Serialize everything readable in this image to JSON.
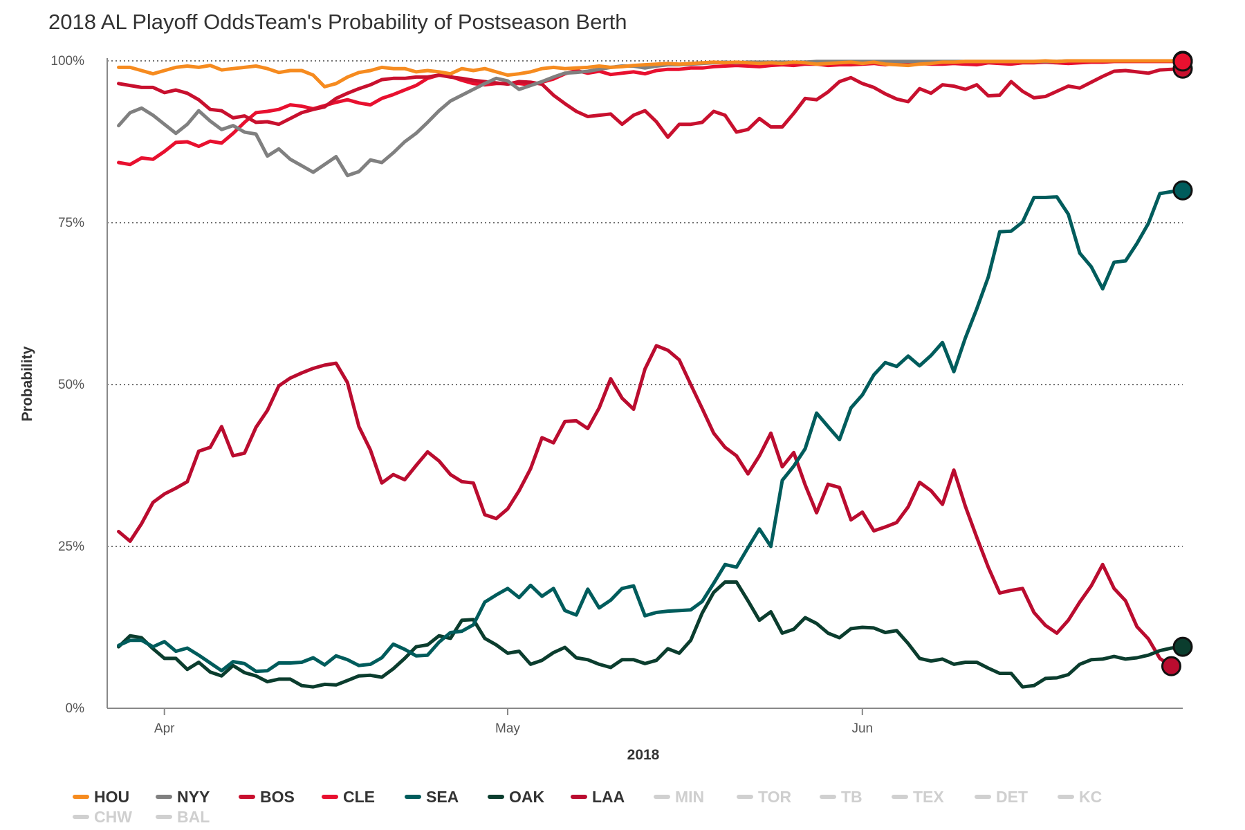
{
  "chart_data": {
    "type": "line",
    "title": "2018 AL Playoff OddsTeam's Probability of Postseason Berth",
    "xlabel": "2018",
    "ylabel": "Probability",
    "ylim": [
      0,
      100
    ],
    "y_ticks": [
      "0%",
      "25%",
      "50%",
      "75%",
      "100%"
    ],
    "x_ticks": [
      {
        "label": "Apr",
        "day": 4
      },
      {
        "label": "May",
        "day": 34
      },
      {
        "label": "Jun",
        "day": 65
      }
    ],
    "xlim": [
      -1,
      93
    ],
    "grid": "horizontal dotted",
    "legend_position": "bottom",
    "series": [
      {
        "name": "HOU",
        "color": "#f68b1f",
        "active": true,
        "values": [
          99,
          99,
          98.5,
          98,
          98.5,
          99,
          99.2,
          99,
          99.3,
          98.6,
          98.8,
          99,
          99.2,
          98.8,
          98.2,
          98.5,
          98.5,
          97.8,
          96,
          96.5,
          97.5,
          98.2,
          98.5,
          99,
          98.8,
          98.8,
          98.3,
          98.5,
          98.3,
          98,
          98.8,
          98.5,
          98.8,
          98.3,
          97.8,
          98,
          98.3,
          98.8,
          99,
          98.8,
          98.9,
          99,
          99.2,
          99,
          99.1,
          99.3,
          99.4,
          99.5,
          99.6,
          99.5,
          99.6,
          99.7,
          99.8,
          99.7,
          99.8,
          99.7,
          99.6,
          99.7,
          99.6,
          99.8,
          99.7,
          99.5,
          99.6,
          99.7,
          99.8,
          99.6,
          99.8,
          99.5,
          99.4,
          99.3,
          99.5,
          99.6,
          99.8,
          99.8,
          99.9,
          99.9,
          99.9,
          99.9,
          99.9,
          99.9,
          99.9,
          100,
          99.9,
          100,
          100,
          100,
          100,
          100,
          100,
          100,
          100,
          100,
          100,
          100
        ]
      },
      {
        "name": "NYY",
        "color": "#808080",
        "active": true,
        "values": [
          90,
          92,
          92.7,
          91.6,
          90.2,
          88.8,
          90.2,
          92.3,
          90.7,
          89.4,
          90,
          89,
          88.7,
          85.3,
          86.4,
          84.8,
          83.8,
          82.8,
          84,
          85.2,
          82.3,
          82.9,
          84.7,
          84.3,
          85.8,
          87.5,
          88.8,
          90.5,
          92.3,
          93.8,
          94.7,
          95.6,
          96.5,
          97.3,
          96.9,
          95.6,
          96.2,
          96.8,
          97.5,
          98.1,
          98.2,
          98.4,
          98.7,
          99,
          99.2,
          99.2,
          98.9,
          99.2,
          99.4,
          99.4,
          99.5,
          99.6,
          99.7,
          99.8,
          99.7,
          99.8,
          99.8,
          99.8,
          99.8,
          99.8,
          99.8,
          99.9,
          99.9,
          99.9,
          99.9,
          99.9,
          99.9,
          99.9,
          99.9,
          99.9,
          99.9,
          99.9,
          99.9,
          99.9,
          99.9,
          99.9,
          99.9,
          99.9,
          99.9,
          99.9,
          99.9,
          99.9,
          99.9,
          100,
          100,
          100,
          100,
          100,
          100,
          100,
          100,
          100,
          100,
          100
        ]
      },
      {
        "name": "BOS",
        "color": "#c8102e",
        "active": true,
        "values": [
          96.5,
          96.2,
          95.9,
          95.9,
          95.1,
          95.5,
          95,
          94,
          92.5,
          92.3,
          91.2,
          91.5,
          90.5,
          90.6,
          90.2,
          91.1,
          92,
          92.5,
          92.9,
          94.2,
          95,
          95.7,
          96.3,
          97.1,
          97.3,
          97.3,
          97.5,
          97.5,
          97.8,
          97.5,
          97.3,
          97,
          96.8,
          96.6,
          96.4,
          96.8,
          96.7,
          96.4,
          94.7,
          93.4,
          92.2,
          91.4,
          91.6,
          91.8,
          90.2,
          91.6,
          92.3,
          90.6,
          88.2,
          90.2,
          90.2,
          90.5,
          92.2,
          91.6,
          89,
          89.4,
          91.1,
          89.8,
          89.8,
          91.9,
          94.2,
          94,
          95.2,
          96.8,
          97.4,
          96.5,
          95.9,
          94.9,
          94.1,
          93.7,
          95.7,
          95,
          96.3,
          96.1,
          95.6,
          96.3,
          94.6,
          94.7,
          96.8,
          95.3,
          94.3,
          94.5,
          95.3,
          96.1,
          95.8,
          96.7,
          97.6,
          98.4,
          98.5,
          98.3,
          98.1,
          98.6,
          98.7,
          98.8
        ]
      },
      {
        "name": "CLE",
        "color": "#e8102f",
        "active": true,
        "values": [
          84.3,
          84,
          85,
          84.8,
          86,
          87.4,
          87.5,
          86.8,
          87.6,
          87.3,
          88.8,
          90.5,
          92,
          92.2,
          92.5,
          93.2,
          93,
          92.6,
          93.1,
          93.6,
          94,
          93.5,
          93.2,
          94.2,
          94.8,
          95.5,
          96.2,
          97.3,
          97.8,
          97.6,
          97,
          96.5,
          96.3,
          96.5,
          96.5,
          96.5,
          96.3,
          96.7,
          97.2,
          98,
          98.5,
          98.1,
          98.4,
          97.9,
          98.1,
          98.3,
          98,
          98.5,
          98.7,
          98.7,
          98.9,
          98.9,
          99.1,
          99.2,
          99.3,
          99.2,
          99.1,
          99.3,
          99.4,
          99.3,
          99.5,
          99.5,
          99.3,
          99.4,
          99.4,
          99.5,
          99.6,
          99.4,
          99.6,
          99.7,
          99.6,
          99.5,
          99.5,
          99.6,
          99.5,
          99.4,
          99.7,
          99.6,
          99.5,
          99.7,
          99.7,
          99.8,
          99.7,
          99.6,
          99.7,
          99.8,
          99.8,
          99.9,
          99.9,
          99.9,
          99.9,
          99.9,
          99.9,
          99.9
        ]
      },
      {
        "name": "SEA",
        "color": "#005c5c",
        "active": true,
        "values": [
          9.7,
          10.5,
          10.5,
          9.5,
          10.3,
          8.8,
          9.3,
          8.2,
          7,
          5.8,
          7.2,
          6.9,
          5.7,
          5.8,
          7,
          7,
          7.1,
          7.8,
          6.7,
          8.1,
          7.5,
          6.6,
          6.8,
          7.8,
          9.9,
          9.1,
          8.1,
          8.2,
          10.2,
          11.7,
          11.9,
          12.9,
          16.4,
          17.5,
          18.5,
          17.1,
          19,
          17.3,
          18.5,
          15.1,
          14.4,
          18.4,
          15.5,
          16.7,
          18.5,
          18.9,
          14.3,
          14.8,
          15,
          15.1,
          15.2,
          16.5,
          19.3,
          22.2,
          21.8,
          24.8,
          27.7,
          25,
          35.2,
          37.4,
          40.1,
          45.6,
          43.5,
          41.5,
          46.4,
          48.4,
          51.5,
          53.4,
          52.8,
          54.4,
          52.9,
          54.5,
          56.5,
          52,
          57.2,
          61.7,
          66.6,
          73.6,
          73.7,
          75.1,
          78.9,
          78.9,
          79,
          76.3,
          70.3,
          68.2,
          64.8,
          68.9,
          69.1,
          71.8,
          74.9,
          79.5,
          79.8,
          80
        ]
      },
      {
        "name": "OAK",
        "color": "#0b3d2e",
        "active": true,
        "values": [
          9.5,
          11.2,
          10.9,
          9.2,
          7.7,
          7.7,
          6,
          7.1,
          5.6,
          5,
          6.6,
          5.5,
          5,
          4.1,
          4.5,
          4.5,
          3.5,
          3.3,
          3.7,
          3.6,
          4.3,
          5,
          5.1,
          4.8,
          6.1,
          7.7,
          9.5,
          9.8,
          11.2,
          10.8,
          13.6,
          13.7,
          10.8,
          9.8,
          8.5,
          8.8,
          6.8,
          7.4,
          8.6,
          9.4,
          7.8,
          7.5,
          6.8,
          6.3,
          7.5,
          7.5,
          6.9,
          7.4,
          9.2,
          8.5,
          10.5,
          14.7,
          17.9,
          19.5,
          19.5,
          16.6,
          13.6,
          14.9,
          11.6,
          12.2,
          14,
          13.1,
          11.6,
          10.9,
          12.3,
          12.5,
          12.4,
          11.7,
          12,
          10,
          7.7,
          7.3,
          7.6,
          6.8,
          7.1,
          7.1,
          6.2,
          5.4,
          5.4,
          3.3,
          3.5,
          4.6,
          4.7,
          5.2,
          6.8,
          7.5,
          7.6,
          8,
          7.6,
          7.8,
          8.2,
          8.9,
          9.3,
          9.5
        ]
      },
      {
        "name": "LAA",
        "color": "#ba0c2f",
        "active": true,
        "values": [
          27.3,
          25.8,
          28.5,
          31.8,
          33.1,
          34,
          35,
          39.7,
          40.3,
          43.5,
          39,
          39.4,
          43.4,
          46,
          49.8,
          51,
          51.8,
          52.5,
          53,
          53.3,
          50.3,
          43.5,
          39.9,
          34.8,
          36.1,
          35.3,
          37.5,
          39.6,
          38.2,
          36.1,
          35,
          34.8,
          29.9,
          29.3,
          30.8,
          33.6,
          37,
          41.8,
          41,
          44.3,
          44.4,
          43.2,
          46.4,
          50.9,
          47.9,
          46.2,
          52.4,
          56,
          55.3,
          53.8,
          50,
          46.3,
          42.5,
          40.3,
          39,
          36.2,
          39,
          42.5,
          37.3,
          39.5,
          34.5,
          30.2,
          34.6,
          34.1,
          29.1,
          30.3,
          27.4,
          28,
          28.7,
          31.1,
          34.9,
          33.6,
          31.5,
          36.8,
          31.2,
          26.4,
          21.8,
          17.8,
          18.2,
          18.5,
          14.8,
          12.8,
          11.6,
          13.6,
          16.4,
          18.9,
          22.2,
          18.5,
          16.6,
          12.6,
          10.7,
          7.7,
          6.5
        ]
      },
      {
        "name": "MIN",
        "color": "#d0d0d0",
        "active": false,
        "values": []
      },
      {
        "name": "TOR",
        "color": "#d0d0d0",
        "active": false,
        "values": []
      },
      {
        "name": "TB",
        "color": "#d0d0d0",
        "active": false,
        "values": []
      },
      {
        "name": "TEX",
        "color": "#d0d0d0",
        "active": false,
        "values": []
      },
      {
        "name": "DET",
        "color": "#d0d0d0",
        "active": false,
        "values": []
      },
      {
        "name": "KC",
        "color": "#d0d0d0",
        "active": false,
        "values": []
      },
      {
        "name": "CHW",
        "color": "#d0d0d0",
        "active": false,
        "values": []
      },
      {
        "name": "BAL",
        "color": "#d0d0d0",
        "active": false,
        "values": []
      }
    ]
  }
}
